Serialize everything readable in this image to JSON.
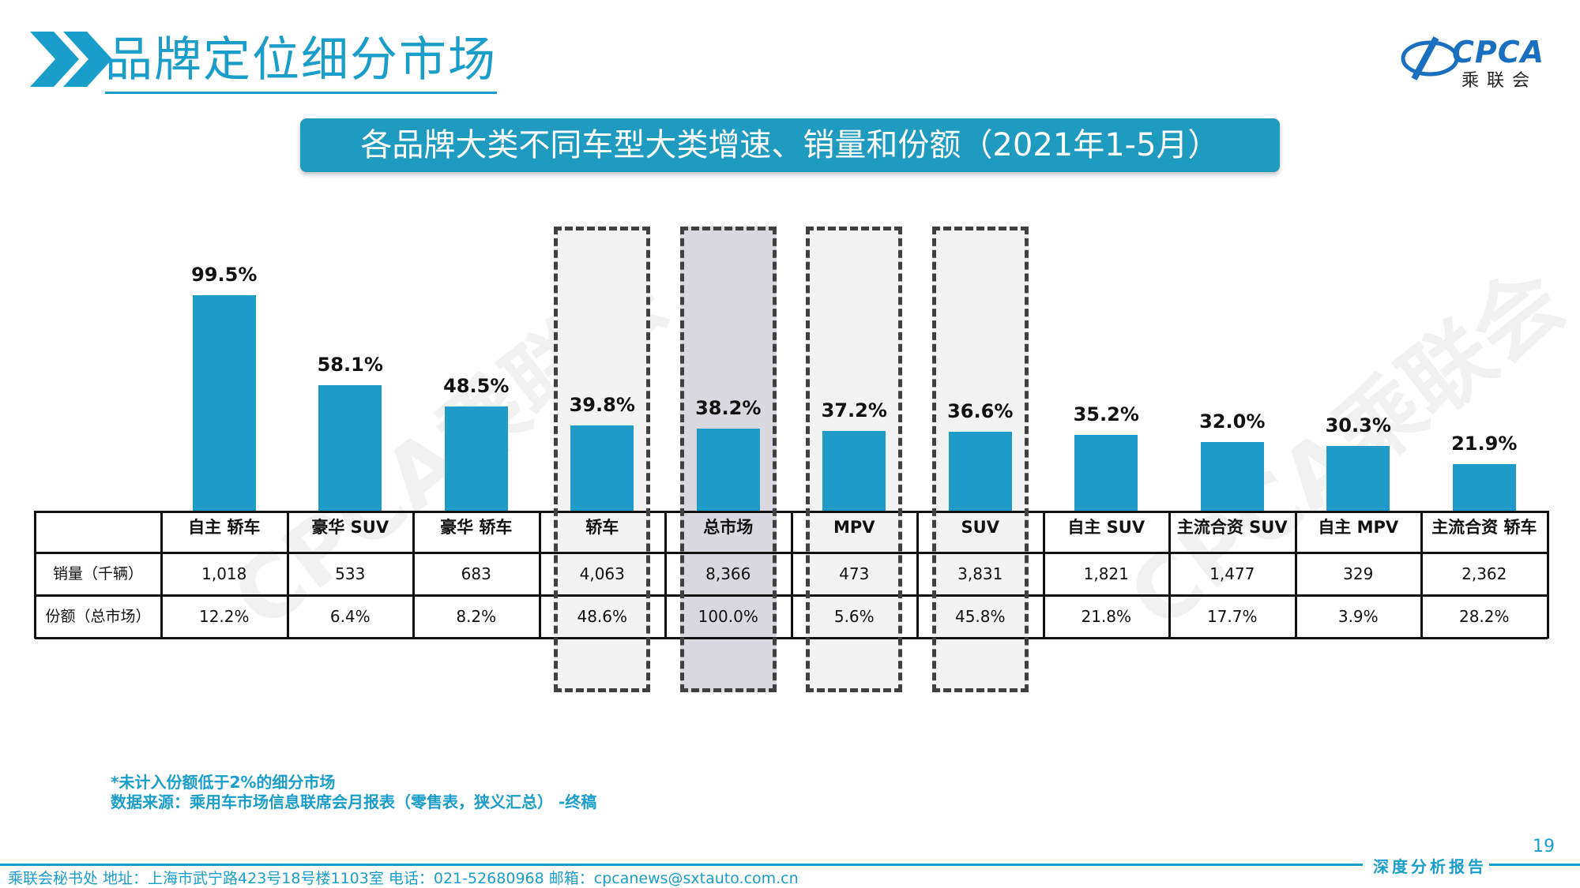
{
  "header": {
    "title": "品牌定位细分市场",
    "logo_text": "CPCA",
    "logo_cn": "乘联会",
    "logo_sub": "CPCA"
  },
  "banner": {
    "text": "各品牌大类不同车型大类增速、销量和份额（2021年1-5月）"
  },
  "watermark": "CPCA乘联会",
  "chart_data": {
    "type": "bar",
    "categories": [
      "自主 轿车",
      "豪华 SUV",
      "豪华 轿车",
      "轿车",
      "总市场",
      "MPV",
      "SUV",
      "自主 SUV",
      "主流合资 SUV",
      "自主 MPV",
      "主流合资 轿车"
    ],
    "values": [
      99.5,
      58.1,
      48.5,
      39.8,
      38.2,
      37.2,
      36.6,
      35.2,
      32.0,
      30.3,
      21.9
    ],
    "value_labels": [
      "99.5%",
      "58.1%",
      "48.5%",
      "39.8%",
      "38.2%",
      "37.2%",
      "36.6%",
      "35.2%",
      "32.0%",
      "30.3%",
      "21.9%"
    ],
    "unit": "%",
    "ylim": [
      0,
      100
    ],
    "color": "#1e9bc7",
    "highlighted": [
      "轿车",
      "总市场",
      "MPV",
      "SUV"
    ],
    "shaded": [
      "总市场"
    ],
    "table": {
      "row_labels": [
        "销量（千辆）",
        "份额（总市场）"
      ],
      "sales": [
        "1,018",
        "533",
        "683",
        "4,063",
        "8,366",
        "473",
        "3,831",
        "1,821",
        "1,477",
        "329",
        "2,362"
      ],
      "share": [
        "12.2%",
        "6.4%",
        "8.2%",
        "48.6%",
        "100.0%",
        "5.6%",
        "45.8%",
        "21.8%",
        "17.7%",
        "3.9%",
        "28.2%"
      ]
    }
  },
  "notes": {
    "line1": "*未计入份额低于2%的细分市场",
    "line2": "数据来源：乘用车市场信息联席会月报表（零售表，狭义汇总） -终稿"
  },
  "footer": {
    "page": "19",
    "report": "深度分析报告",
    "contact": "乘联会秘书处   地址：上海市武宁路423号18号楼1103室  电话：021-52680968   邮箱：cpcanews@sxtauto.com.cn"
  }
}
